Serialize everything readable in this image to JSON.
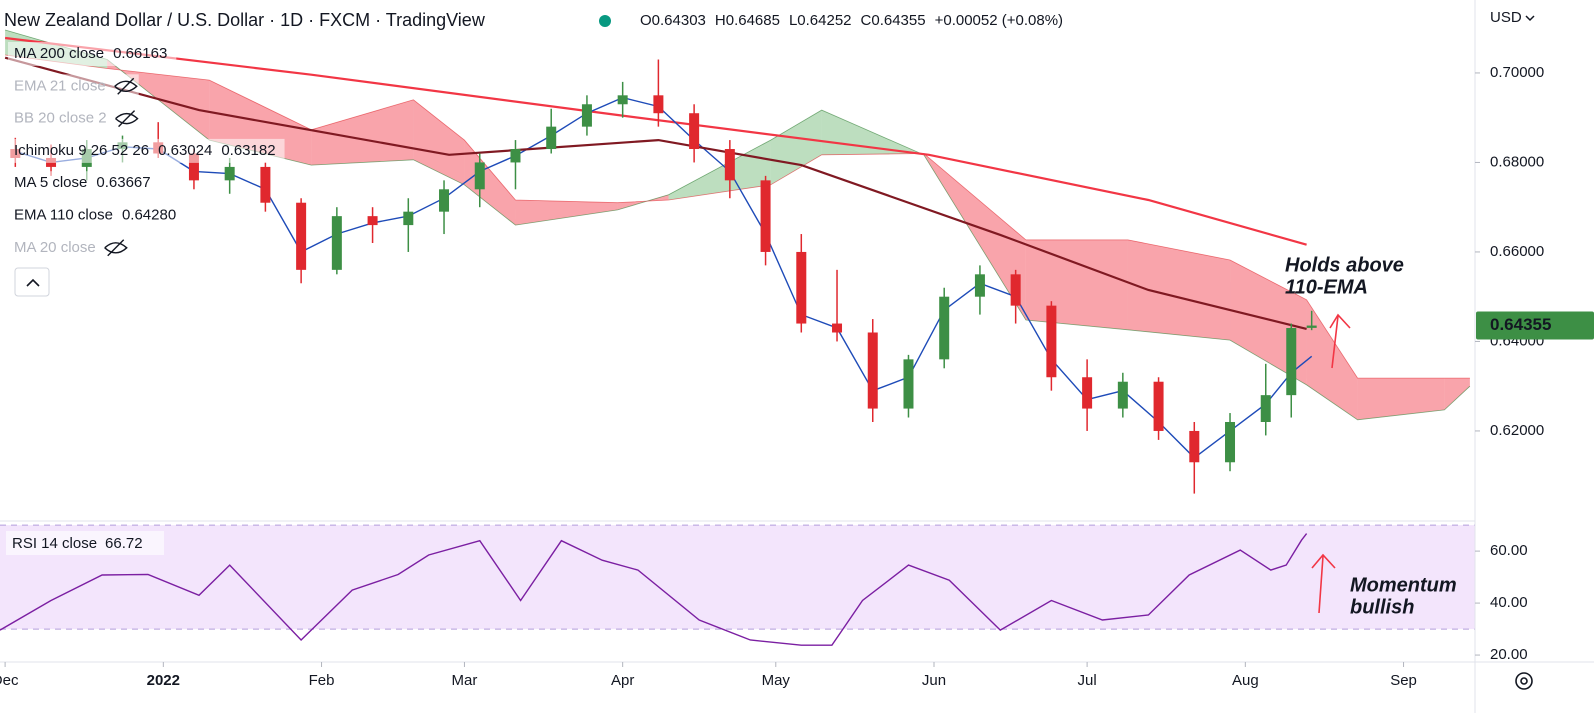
{
  "header": {
    "title": "New Zealand Dollar / U.S. Dollar · 1D · FXCM · TradingView",
    "ohlc": [
      "O0.64303",
      "H0.64685",
      "L0.64252",
      "C0.64355",
      "+0.00052 (+0.08%)"
    ],
    "currency": "USD"
  },
  "chart_data": [
    {
      "type": "candlestick",
      "x": [
        2,
        9,
        16,
        23,
        30,
        37,
        44,
        51,
        58,
        65,
        72,
        79,
        86,
        93,
        100,
        107,
        114,
        121,
        128,
        135,
        142,
        149,
        156,
        163,
        170,
        177,
        184,
        191,
        198,
        205,
        212,
        219,
        226,
        233,
        240,
        247,
        252,
        256
      ],
      "open": [
        0.683,
        0.681,
        0.679,
        0.683,
        0.6845,
        0.682,
        0.676,
        0.679,
        0.671,
        0.656,
        0.668,
        0.666,
        0.669,
        0.674,
        0.68,
        0.683,
        0.688,
        0.693,
        0.695,
        0.691,
        0.683,
        0.676,
        0.66,
        0.644,
        0.642,
        0.625,
        0.636,
        0.65,
        0.655,
        0.648,
        0.632,
        0.625,
        0.631,
        0.62,
        0.613,
        0.622,
        0.628,
        0.64303
      ],
      "high": [
        0.6855,
        0.684,
        0.685,
        0.686,
        0.689,
        0.683,
        0.681,
        0.68,
        0.672,
        0.67,
        0.67,
        0.672,
        0.676,
        0.682,
        0.685,
        0.692,
        0.695,
        0.698,
        0.703,
        0.693,
        0.685,
        0.677,
        0.664,
        0.656,
        0.645,
        0.637,
        0.652,
        0.657,
        0.656,
        0.649,
        0.636,
        0.633,
        0.632,
        0.622,
        0.624,
        0.635,
        0.644,
        0.64685
      ],
      "low": [
        0.679,
        0.677,
        0.676,
        0.68,
        0.681,
        0.674,
        0.673,
        0.669,
        0.653,
        0.655,
        0.662,
        0.66,
        0.664,
        0.67,
        0.674,
        0.682,
        0.686,
        0.69,
        0.688,
        0.68,
        0.672,
        0.657,
        0.642,
        0.64,
        0.622,
        0.623,
        0.634,
        0.646,
        0.644,
        0.629,
        0.62,
        0.623,
        0.618,
        0.606,
        0.611,
        0.619,
        0.623,
        0.64252
      ],
      "close": [
        0.681,
        0.679,
        0.683,
        0.6845,
        0.682,
        0.676,
        0.679,
        0.671,
        0.656,
        0.668,
        0.666,
        0.669,
        0.674,
        0.68,
        0.683,
        0.688,
        0.693,
        0.695,
        0.691,
        0.683,
        0.676,
        0.66,
        0.644,
        0.642,
        0.625,
        0.636,
        0.65,
        0.655,
        0.648,
        0.632,
        0.625,
        0.631,
        0.62,
        0.613,
        0.622,
        0.628,
        0.643,
        0.64355
      ],
      "up_color": "#3d8f45",
      "down_color": "#e0282e",
      "last_price_label": "0.64355",
      "xlim": [
        -1,
        288
      ],
      "ylim": [
        0.6001,
        0.7163
      ],
      "xticks": [
        {
          "value": 0,
          "label": "Dec"
        },
        {
          "value": 31,
          "label": "2022"
        },
        {
          "value": 62,
          "label": "Feb"
        },
        {
          "value": 90,
          "label": "Mar"
        },
        {
          "value": 121,
          "label": "Apr"
        },
        {
          "value": 151,
          "label": "May"
        },
        {
          "value": 182,
          "label": "Jun"
        },
        {
          "value": 212,
          "label": "Jul"
        },
        {
          "value": 243,
          "label": "Aug"
        },
        {
          "value": 274,
          "label": "Sep"
        }
      ],
      "yticks": [
        {
          "value": 0.62,
          "label": "0.62000"
        },
        {
          "value": 0.64,
          "label": "0.64000"
        },
        {
          "value": 0.66,
          "label": "0.66000"
        },
        {
          "value": 0.68,
          "label": "0.68000"
        },
        {
          "value": 0.7,
          "label": "0.70000"
        }
      ],
      "indicators": [
        {
          "name": "MA 200 close",
          "value_label": "0.66163",
          "color": "#f23645",
          "x": [
            0,
            60,
            120,
            181,
            224,
            255
          ],
          "values": [
            0.7078,
            0.6996,
            0.6906,
            0.6817,
            0.6716,
            0.66163
          ]
        },
        {
          "name": "EMA 21 close",
          "hidden": true
        },
        {
          "name": "BB 20 close 2",
          "hidden": true
        },
        {
          "name": "Ichimoku 9 26 52 26",
          "value_labels": [
            "0.63024",
            "0.63182"
          ],
          "colors": [
            "#2e7d32",
            "#e0282e"
          ],
          "x": [
            0,
            20,
            40,
            60,
            80,
            90,
            100,
            120,
            130,
            150,
            160,
            180,
            200,
            220,
            240,
            255,
            265,
            282,
            287
          ],
          "span_a": [
            0.7096,
            0.703,
            0.685,
            0.6794,
            0.6806,
            0.675,
            0.666,
            0.6694,
            0.6728,
            0.685,
            0.6917,
            0.6817,
            0.6448,
            0.6426,
            0.6403,
            0.6303,
            0.6225,
            0.6247,
            0.63
          ],
          "span_b": [
            0.704,
            0.701,
            0.6984,
            0.6873,
            0.694,
            0.685,
            0.6716,
            0.671,
            0.6716,
            0.675,
            0.6817,
            0.682,
            0.6627,
            0.6627,
            0.6582,
            0.6493,
            0.6318,
            0.6318,
            0.6318
          ]
        },
        {
          "name": "MA 5 close",
          "value_label": "0.63667",
          "color": "#1e4bb8",
          "x": [
            2,
            9,
            16,
            23,
            30,
            37,
            44,
            51,
            58,
            65,
            72,
            79,
            86,
            93,
            100,
            107,
            114,
            121,
            128,
            135,
            142,
            149,
            156,
            163,
            170,
            177,
            184,
            191,
            198,
            205,
            212,
            219,
            226,
            233,
            240,
            247,
            252,
            256
          ],
          "values": [
            0.6825,
            0.68,
            0.681,
            0.6835,
            0.683,
            0.678,
            0.6775,
            0.674,
            0.66,
            0.664,
            0.6665,
            0.668,
            0.672,
            0.678,
            0.6815,
            0.686,
            0.691,
            0.6945,
            0.6925,
            0.685,
            0.678,
            0.664,
            0.646,
            0.643,
            0.629,
            0.632,
            0.647,
            0.653,
            0.65,
            0.636,
            0.627,
            0.629,
            0.622,
            0.614,
            0.62,
            0.626,
            0.633,
            0.63667
          ]
        },
        {
          "name": "EMA 110 close",
          "value_label": "0.64280",
          "color": "#801922",
          "x": [
            0,
            38,
            87,
            128,
            156,
            195,
            224,
            255
          ],
          "values": [
            0.7034,
            0.6917,
            0.6817,
            0.685,
            0.6794,
            0.6638,
            0.6515,
            0.6428
          ]
        },
        {
          "name": "MA 20 close",
          "hidden": true
        }
      ],
      "annotations": [
        "Holds above",
        "110-EMA"
      ]
    },
    {
      "type": "line",
      "name": "RSI 14 close",
      "color": "#7b1fa2",
      "x": [
        -1,
        9,
        19,
        28,
        38,
        44,
        58,
        68,
        77,
        83,
        93,
        101,
        109,
        117,
        124,
        136,
        146,
        156,
        162,
        168,
        177,
        185,
        195,
        205,
        215,
        224,
        232,
        242,
        248,
        251,
        254,
        255
      ],
      "values": [
        29.6,
        41,
        50.8,
        51,
        43,
        54.6,
        25.8,
        45,
        51,
        58.5,
        64,
        41,
        64,
        56.5,
        52.7,
        33.5,
        25.8,
        23.8,
        23.8,
        41,
        54.6,
        48.8,
        29.6,
        41,
        33.5,
        35.4,
        50.8,
        60.4,
        52.7,
        54.6,
        64.2,
        66.72
      ],
      "xlim": [
        -1,
        288
      ],
      "ylim": [
        18.1,
        71.2
      ],
      "band": [
        30,
        70
      ],
      "yticks": [
        {
          "value": 20,
          "label": "20.00"
        },
        {
          "value": 40,
          "label": "40.00"
        },
        {
          "value": 60,
          "label": "60.00"
        }
      ],
      "annotations": [
        "Momentum",
        "bullish"
      ]
    }
  ]
}
